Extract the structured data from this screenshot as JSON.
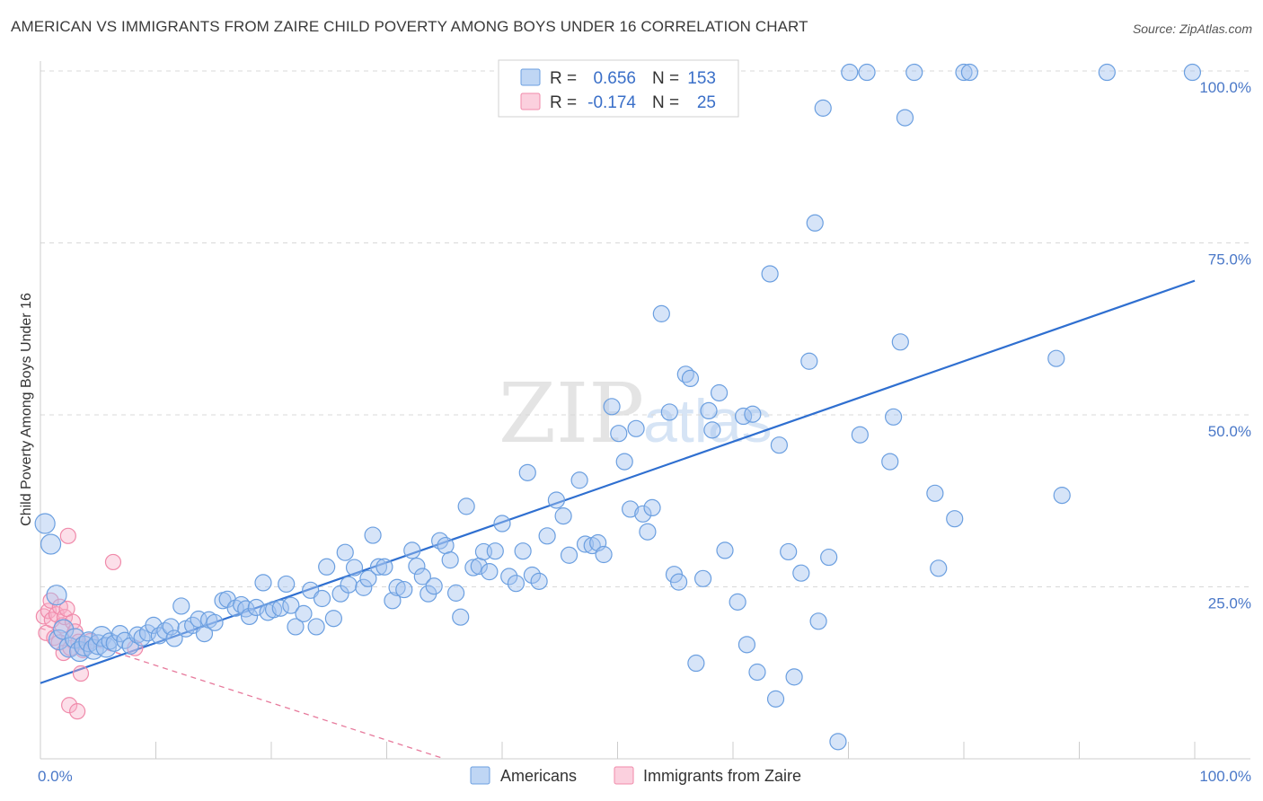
{
  "title": "AMERICAN VS IMMIGRANTS FROM ZAIRE CHILD POVERTY AMONG BOYS UNDER 16 CORRELATION CHART",
  "source": "Source: ZipAtlas.com",
  "watermark": {
    "zip": "ZIP",
    "atlas": "atlas"
  },
  "colors": {
    "americans_fill": "rgba(164,196,240,0.45)",
    "americans_stroke": "#6b9fe0",
    "americans_line": "#2f6fd0",
    "zaire_fill": "rgba(248,176,200,0.40)",
    "zaire_stroke": "#f08aaa",
    "zaire_line": "#e77a9c",
    "blue_text": "#3a6fc8",
    "grid": "#d8d8d8"
  },
  "legend": {
    "r_label": "R =",
    "n_label": "N =",
    "rows": [
      {
        "r": "0.656",
        "n": "153"
      },
      {
        "r": "-0.174",
        "n": "25"
      }
    ]
  },
  "bottom_legend": [
    "Americans",
    "Immigrants from Zaire"
  ],
  "chart_data": {
    "type": "scatter",
    "title": "AMERICAN VS IMMIGRANTS FROM ZAIRE CHILD POVERTY AMONG BOYS UNDER 16 CORRELATION CHART",
    "xlabel": "",
    "ylabel": "Child Poverty Among Boys Under 16",
    "xlim": [
      0,
      100
    ],
    "ylim": [
      0,
      100
    ],
    "x_tick_labels": [
      "0.0%",
      "100.0%"
    ],
    "y_tick_labels": [
      "25.0%",
      "50.0%",
      "75.0%",
      "100.0%"
    ],
    "y_ticks": [
      25,
      50,
      75,
      100
    ],
    "x_minor_ticks": [
      0,
      10,
      20,
      30,
      40,
      50,
      60,
      70,
      80,
      90,
      100
    ],
    "legend_position": "top-center",
    "series": [
      {
        "name": "Americans",
        "r": 0.656,
        "n": 153,
        "trend": {
          "x": [
            0,
            100
          ],
          "y": [
            11,
            69.5
          ]
        },
        "points": [
          [
            0.4,
            34.2
          ],
          [
            0.9,
            31.2
          ],
          [
            1.4,
            23.8
          ],
          [
            1.6,
            17.3
          ],
          [
            2.0,
            18.8
          ],
          [
            2.5,
            16.2
          ],
          [
            3.0,
            17.5
          ],
          [
            3.4,
            15.6
          ],
          [
            3.8,
            16.4
          ],
          [
            4.2,
            17.0
          ],
          [
            4.6,
            15.9
          ],
          [
            5.0,
            16.6
          ],
          [
            5.3,
            17.8
          ],
          [
            5.7,
            16.2
          ],
          [
            6.0,
            17.1
          ],
          [
            6.4,
            16.8
          ],
          [
            6.9,
            18.2
          ],
          [
            7.3,
            17.2
          ],
          [
            7.8,
            16.4
          ],
          [
            8.4,
            18.0
          ],
          [
            8.8,
            17.6
          ],
          [
            9.3,
            18.3
          ],
          [
            9.8,
            19.4
          ],
          [
            10.3,
            17.9
          ],
          [
            10.8,
            18.6
          ],
          [
            11.3,
            19.2
          ],
          [
            11.6,
            17.5
          ],
          [
            12.2,
            22.2
          ],
          [
            12.6,
            18.9
          ],
          [
            13.2,
            19.4
          ],
          [
            13.7,
            20.3
          ],
          [
            14.2,
            18.2
          ],
          [
            14.6,
            20.2
          ],
          [
            15.1,
            19.8
          ],
          [
            15.8,
            23.0
          ],
          [
            16.2,
            23.2
          ],
          [
            16.9,
            21.9
          ],
          [
            17.4,
            22.4
          ],
          [
            17.8,
            21.8
          ],
          [
            18.1,
            20.7
          ],
          [
            18.7,
            22.0
          ],
          [
            19.3,
            25.6
          ],
          [
            19.7,
            21.3
          ],
          [
            20.2,
            21.7
          ],
          [
            20.8,
            21.9
          ],
          [
            21.3,
            25.4
          ],
          [
            21.7,
            22.3
          ],
          [
            22.1,
            19.2
          ],
          [
            22.8,
            21.1
          ],
          [
            23.4,
            24.5
          ],
          [
            23.9,
            19.2
          ],
          [
            24.4,
            23.3
          ],
          [
            24.8,
            27.9
          ],
          [
            25.4,
            20.4
          ],
          [
            26.0,
            24.0
          ],
          [
            26.4,
            30.0
          ],
          [
            26.7,
            25.3
          ],
          [
            27.2,
            27.8
          ],
          [
            28.0,
            24.9
          ],
          [
            28.4,
            26.2
          ],
          [
            28.8,
            32.5
          ],
          [
            29.3,
            27.9
          ],
          [
            29.8,
            27.9
          ],
          [
            30.5,
            23.0
          ],
          [
            30.9,
            24.9
          ],
          [
            31.5,
            24.6
          ],
          [
            32.2,
            30.3
          ],
          [
            32.6,
            28.0
          ],
          [
            33.1,
            26.5
          ],
          [
            33.6,
            24.0
          ],
          [
            34.1,
            25.1
          ],
          [
            34.6,
            31.7
          ],
          [
            35.1,
            31.0
          ],
          [
            35.5,
            28.9
          ],
          [
            36.0,
            24.1
          ],
          [
            36.4,
            20.6
          ],
          [
            36.9,
            36.7
          ],
          [
            37.5,
            27.8
          ],
          [
            38.0,
            28.0
          ],
          [
            38.4,
            30.1
          ],
          [
            38.9,
            27.2
          ],
          [
            39.4,
            30.2
          ],
          [
            40.0,
            34.2
          ],
          [
            40.6,
            26.5
          ],
          [
            41.2,
            25.5
          ],
          [
            41.8,
            30.2
          ],
          [
            42.2,
            41.6
          ],
          [
            42.6,
            26.7
          ],
          [
            43.2,
            25.8
          ],
          [
            43.9,
            32.4
          ],
          [
            44.7,
            37.6
          ],
          [
            45.3,
            35.3
          ],
          [
            45.8,
            29.6
          ],
          [
            46.7,
            40.5
          ],
          [
            47.2,
            31.2
          ],
          [
            47.8,
            31.0
          ],
          [
            48.3,
            31.4
          ],
          [
            48.8,
            29.7
          ],
          [
            49.5,
            51.2
          ],
          [
            50.1,
            47.3
          ],
          [
            50.6,
            43.2
          ],
          [
            51.1,
            36.3
          ],
          [
            51.6,
            48.0
          ],
          [
            52.2,
            35.6
          ],
          [
            52.6,
            33.0
          ],
          [
            53.0,
            36.5
          ],
          [
            53.8,
            64.7
          ],
          [
            54.5,
            50.4
          ],
          [
            54.9,
            26.8
          ],
          [
            55.3,
            25.7
          ],
          [
            55.9,
            55.9
          ],
          [
            56.3,
            55.3
          ],
          [
            56.8,
            13.9
          ],
          [
            57.4,
            26.2
          ],
          [
            57.9,
            50.6
          ],
          [
            58.2,
            47.8
          ],
          [
            58.8,
            53.2
          ],
          [
            59.3,
            30.3
          ],
          [
            60.4,
            22.8
          ],
          [
            60.9,
            49.8
          ],
          [
            61.2,
            16.6
          ],
          [
            61.7,
            50.1
          ],
          [
            62.1,
            12.6
          ],
          [
            63.2,
            70.5
          ],
          [
            63.7,
            8.7
          ],
          [
            64.0,
            45.6
          ],
          [
            64.8,
            30.1
          ],
          [
            65.3,
            11.9
          ],
          [
            65.9,
            27.0
          ],
          [
            66.6,
            57.8
          ],
          [
            67.1,
            77.9
          ],
          [
            67.4,
            20.0
          ],
          [
            67.8,
            94.6
          ],
          [
            68.3,
            29.3
          ],
          [
            69.1,
            2.5
          ],
          [
            70.1,
            99.8
          ],
          [
            71.0,
            47.1
          ],
          [
            71.6,
            99.8
          ],
          [
            73.6,
            43.2
          ],
          [
            73.9,
            49.7
          ],
          [
            74.5,
            60.6
          ],
          [
            74.9,
            93.2
          ],
          [
            75.7,
            99.8
          ],
          [
            77.5,
            38.6
          ],
          [
            77.8,
            27.7
          ],
          [
            79.2,
            34.9
          ],
          [
            80.0,
            99.8
          ],
          [
            80.5,
            99.8
          ],
          [
            88.0,
            58.2
          ],
          [
            88.5,
            38.3
          ],
          [
            92.4,
            99.8
          ],
          [
            99.8,
            99.8
          ]
        ]
      },
      {
        "name": "Immigrants from Zaire",
        "r": -0.174,
        "n": 25,
        "trend": {
          "x": [
            0,
            35
          ],
          "y": [
            19,
            0
          ]
        },
        "points": [
          [
            0.3,
            20.7
          ],
          [
            0.5,
            18.3
          ],
          [
            0.7,
            21.5
          ],
          [
            0.9,
            23.0
          ],
          [
            1.0,
            20.2
          ],
          [
            1.2,
            17.6
          ],
          [
            1.4,
            21.0
          ],
          [
            1.6,
            16.9
          ],
          [
            1.7,
            22.1
          ],
          [
            1.9,
            19.4
          ],
          [
            2.0,
            15.4
          ],
          [
            2.1,
            20.6
          ],
          [
            2.3,
            21.8
          ],
          [
            2.4,
            32.4
          ],
          [
            2.5,
            7.8
          ],
          [
            2.6,
            16.1
          ],
          [
            2.8,
            19.9
          ],
          [
            3.0,
            18.5
          ],
          [
            3.2,
            6.9
          ],
          [
            3.3,
            17.0
          ],
          [
            3.5,
            12.4
          ],
          [
            3.7,
            15.8
          ],
          [
            4.3,
            17.1
          ],
          [
            6.3,
            28.6
          ],
          [
            8.2,
            16.1
          ]
        ]
      }
    ]
  }
}
